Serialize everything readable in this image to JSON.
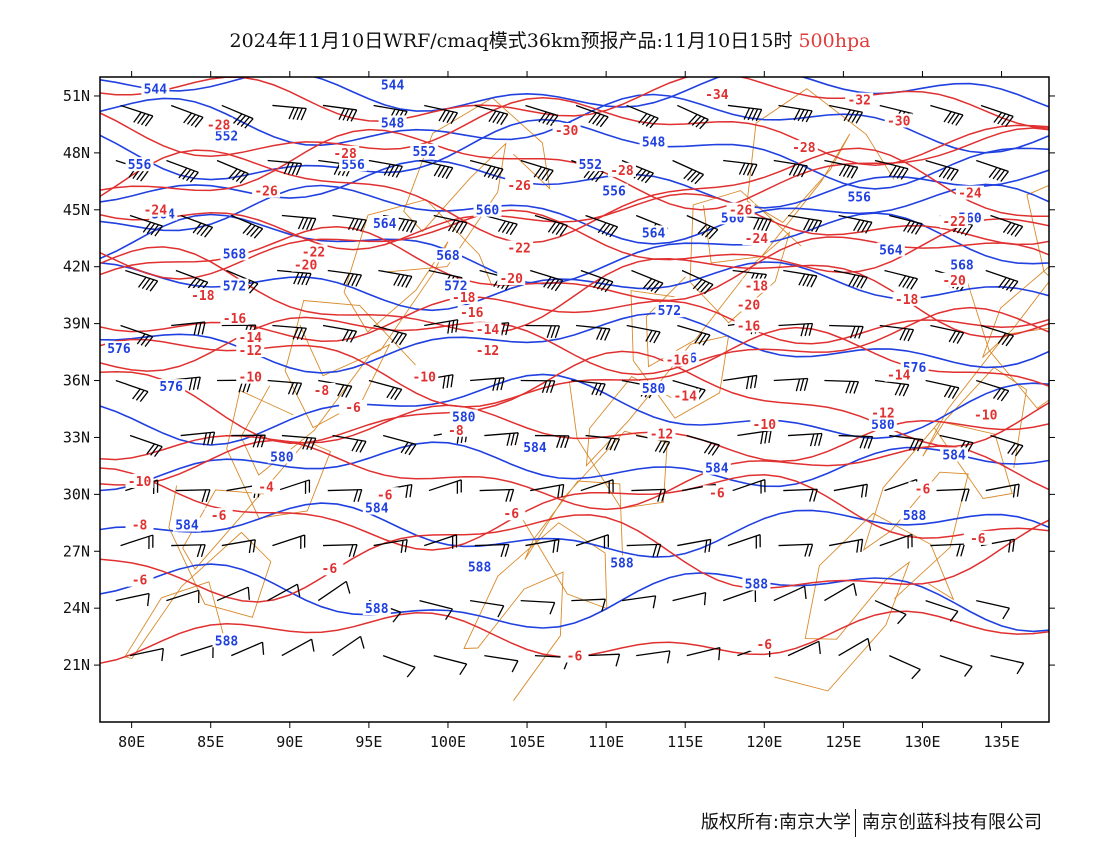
{
  "title": {
    "main": "2024年11月10日WRF/cmaq模式36km预报产品:11月10日15时",
    "level": "500hpa"
  },
  "axes": {
    "lat_labels": [
      "51N",
      "48N",
      "45N",
      "42N",
      "39N",
      "36N",
      "33N",
      "30N",
      "27N",
      "24N",
      "21N"
    ],
    "lat_values": [
      51,
      48,
      45,
      42,
      39,
      36,
      33,
      30,
      27,
      24,
      21
    ],
    "lon_labels": [
      "80E",
      "85E",
      "90E",
      "95E",
      "100E",
      "105E",
      "110E",
      "115E",
      "120E",
      "125E",
      "130E",
      "135E"
    ],
    "lon_values": [
      80,
      85,
      90,
      95,
      100,
      105,
      110,
      115,
      120,
      125,
      130,
      135
    ],
    "lon_range": [
      78,
      138
    ],
    "lat_range": [
      18,
      52
    ]
  },
  "colors": {
    "height_contour": "#2040e0",
    "temperature_contour": "#e03030",
    "boundary": "#d98a2b",
    "wind_barb": "#000000",
    "frame": "#000000"
  },
  "height_contours": [
    {
      "value": "544",
      "label_pos": [
        [
          81.5,
          51.3
        ],
        [
          96.5,
          51.5
        ]
      ]
    },
    {
      "value": "548",
      "label_pos": [
        [
          96.5,
          49.5
        ],
        [
          113,
          48.5
        ]
      ]
    },
    {
      "value": "552",
      "label_pos": [
        [
          86,
          48.8
        ],
        [
          98.5,
          48.0
        ],
        [
          109,
          47.3
        ]
      ]
    },
    {
      "value": "556",
      "label_pos": [
        [
          80.5,
          47.3
        ],
        [
          94,
          47.3
        ],
        [
          110.5,
          45.9
        ],
        [
          126,
          45.6
        ]
      ]
    },
    {
      "value": "560",
      "label_pos": [
        [
          102.5,
          44.9
        ],
        [
          118,
          44.5
        ],
        [
          133,
          44.5
        ]
      ]
    },
    {
      "value": "564",
      "label_pos": [
        [
          82,
          44.7
        ],
        [
          96,
          44.2
        ],
        [
          113,
          43.7
        ],
        [
          128,
          42.8
        ]
      ]
    },
    {
      "value": "568",
      "label_pos": [
        [
          86.5,
          42.6
        ],
        [
          100,
          42.5
        ],
        [
          132.5,
          42.0
        ]
      ]
    },
    {
      "value": "572",
      "label_pos": [
        [
          86.5,
          40.9
        ],
        [
          100.5,
          40.9
        ],
        [
          114,
          39.6
        ]
      ]
    },
    {
      "value": "576",
      "label_pos": [
        [
          79.2,
          37.6
        ],
        [
          82.5,
          35.6
        ],
        [
          115,
          37.1
        ],
        [
          129.5,
          36.6
        ]
      ]
    },
    {
      "value": "580",
      "label_pos": [
        [
          89.5,
          31.9
        ],
        [
          101,
          34.0
        ],
        [
          113,
          35.5
        ],
        [
          127.5,
          33.6
        ]
      ]
    },
    {
      "value": "584",
      "label_pos": [
        [
          83.5,
          28.3
        ],
        [
          95.5,
          29.2
        ],
        [
          105.5,
          32.4
        ],
        [
          117,
          31.3
        ],
        [
          132,
          32.0
        ]
      ]
    },
    {
      "value": "588",
      "label_pos": [
        [
          102,
          26.1
        ],
        [
          111,
          26.3
        ],
        [
          119.5,
          25.2
        ],
        [
          129.5,
          28.8
        ],
        [
          86,
          22.2
        ],
        [
          95.5,
          23.9
        ]
      ]
    }
  ],
  "temperature_contours": [
    {
      "value": "-34",
      "label_pos": [
        [
          117,
          51.0
        ]
      ]
    },
    {
      "value": "-32",
      "label_pos": [
        [
          126,
          50.7
        ]
      ]
    },
    {
      "value": "-30",
      "label_pos": [
        [
          107.5,
          49.1
        ],
        [
          128.5,
          49.6
        ]
      ]
    },
    {
      "value": "-28",
      "label_pos": [
        [
          85.5,
          49.4
        ],
        [
          93.5,
          47.9
        ],
        [
          122.5,
          48.2
        ],
        [
          111,
          47.0
        ]
      ]
    },
    {
      "value": "-26",
      "label_pos": [
        [
          88.5,
          45.9
        ],
        [
          104.5,
          46.2
        ],
        [
          118.5,
          44.9
        ]
      ]
    },
    {
      "value": "-24",
      "label_pos": [
        [
          81.5,
          44.9
        ],
        [
          119.5,
          43.4
        ],
        [
          133,
          45.8
        ]
      ]
    },
    {
      "value": "-22",
      "label_pos": [
        [
          91.5,
          42.7
        ],
        [
          104.5,
          42.9
        ],
        [
          132,
          44.3
        ]
      ]
    },
    {
      "value": "-20",
      "label_pos": [
        [
          91,
          42.0
        ],
        [
          104,
          41.3
        ],
        [
          119,
          39.9
        ],
        [
          132,
          41.2
        ]
      ]
    },
    {
      "value": "-18",
      "label_pos": [
        [
          84.5,
          40.4
        ],
        [
          101,
          40.3
        ],
        [
          119.5,
          40.9
        ],
        [
          129,
          40.2
        ]
      ]
    },
    {
      "value": "-16",
      "label_pos": [
        [
          86.5,
          39.2
        ],
        [
          101.5,
          39.5
        ],
        [
          119,
          38.8
        ],
        [
          114.5,
          37.0
        ]
      ]
    },
    {
      "value": "-14",
      "label_pos": [
        [
          87.5,
          38.2
        ],
        [
          102.5,
          38.6
        ],
        [
          115,
          35.1
        ],
        [
          128.5,
          36.2
        ]
      ]
    },
    {
      "value": "-12",
      "label_pos": [
        [
          87.5,
          37.5
        ],
        [
          102.5,
          37.5
        ],
        [
          113.5,
          33.1
        ],
        [
          127.5,
          34.2
        ]
      ]
    },
    {
      "value": "-10",
      "label_pos": [
        [
          87.5,
          36.1
        ],
        [
          98.5,
          36.1
        ],
        [
          120,
          33.6
        ],
        [
          134,
          34.1
        ]
      ]
    },
    {
      "value": "-8",
      "label_pos": [
        [
          92,
          35.4
        ],
        [
          100.5,
          33.3
        ],
        [
          80.5,
          28.3
        ]
      ]
    },
    {
      "value": "-6",
      "label_pos": [
        [
          94,
          34.5
        ],
        [
          85.5,
          28.8
        ],
        [
          96,
          29.9
        ],
        [
          104,
          28.9
        ],
        [
          117,
          30.0
        ],
        [
          92.5,
          26.0
        ],
        [
          80.5,
          25.4
        ]
      ]
    },
    {
      "value": "-4",
      "label_pos": [
        [
          88.5,
          30.3
        ]
      ]
    },
    {
      "value": "-10",
      "label_pos": [
        [
          80.5,
          30.6
        ]
      ]
    },
    {
      "value": "-6",
      "label_pos": [
        [
          108,
          21.4
        ],
        [
          120,
          22.0
        ],
        [
          133.5,
          27.6
        ]
      ]
    },
    {
      "value": "-6",
      "label_pos": [
        [
          130,
          30.2
        ]
      ]
    }
  ],
  "footer": {
    "left": "版权所有:南京大学",
    "right": "南京创蓝科技有限公司"
  }
}
